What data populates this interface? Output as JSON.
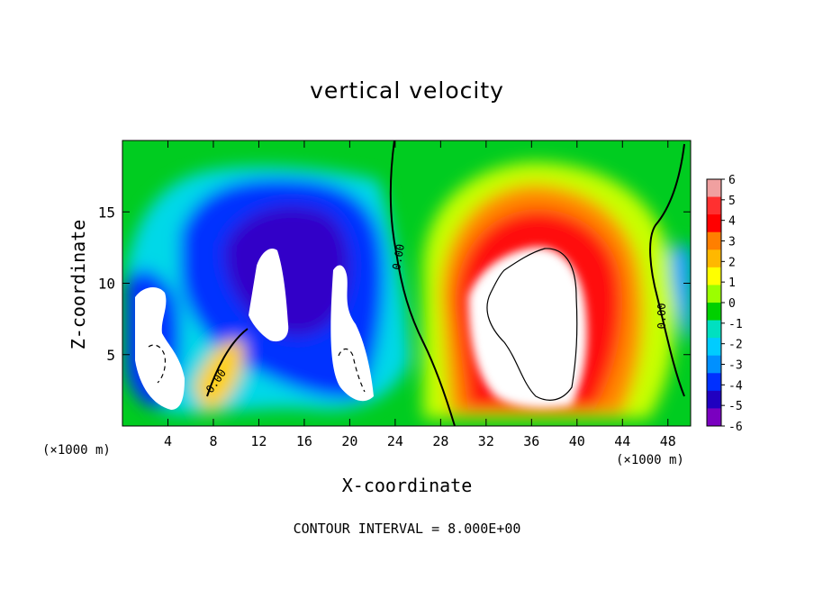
{
  "title": "vertical velocity",
  "footer": "CONTOUR INTERVAL = 8.000E+00",
  "chart_data": {
    "type": "heatmap",
    "title": "vertical velocity",
    "xlabel": "X-coordinate",
    "ylabel": "Z-coordinate",
    "x_unit": "(×1000 m)",
    "z_unit": "(×1000 m)",
    "xlim": [
      0,
      50
    ],
    "ylim": [
      0,
      20
    ],
    "x_ticks": [
      4,
      8,
      12,
      16,
      20,
      24,
      28,
      32,
      36,
      40,
      44,
      48
    ],
    "y_ticks": [
      5,
      10,
      15
    ],
    "colorbar": {
      "ticks": [
        6,
        5,
        4,
        3,
        2,
        1,
        0,
        -1,
        -2,
        -3,
        -4,
        -5,
        -6
      ],
      "range": [
        -6,
        6
      ],
      "colors": [
        "#f0a0a0",
        "#ff3030",
        "#ff0000",
        "#ff7f00",
        "#ffb800",
        "#ffff00",
        "#9bff00",
        "#00d000",
        "#00e0c0",
        "#00ccff",
        "#0090ff",
        "#0030ff",
        "#2000c0",
        "#7a00c0"
      ]
    },
    "contour_labels": [
      "0.00",
      "0.00",
      "0.00"
    ],
    "contour_interval": 8.0,
    "features": [
      {
        "name": "updraft core",
        "sign": "positive",
        "x": [
          30,
          44
        ],
        "z": [
          2,
          13
        ]
      },
      {
        "name": "downdraft region",
        "sign": "negative",
        "x": [
          1,
          23
        ],
        "z": [
          2,
          17
        ]
      }
    ]
  }
}
